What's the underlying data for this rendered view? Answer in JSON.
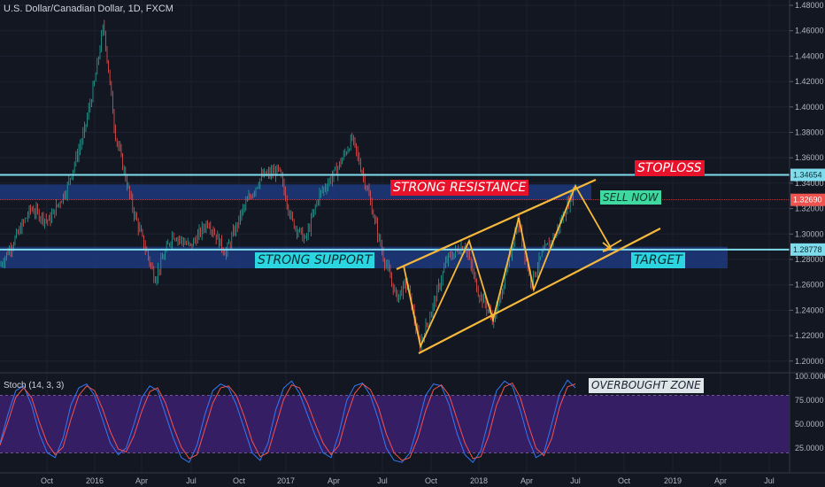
{
  "header": {
    "symbol_title": "U.S. Dollar/Canadian Dollar, 1D, FXCM",
    "stoch_title": "Stoch (14, 3, 3)"
  },
  "annotations": {
    "stoploss": "STOPLOSS",
    "strong_resistance": "STRONG RESISTANCE",
    "sell_now": "SELL NOW",
    "strong_support": "STRONG SUPPORT",
    "target": "TARGET",
    "overbought_zone": "OVERBOUGHT ZONE"
  },
  "price_tags": {
    "upper_line": "1.34654",
    "current": "1.32690",
    "lower_line": "1.28778"
  },
  "colors": {
    "background": "#131722",
    "candle_up": "#26a69a",
    "candle_down": "#ef5350",
    "level_line": "#7fdcec",
    "zone_fill": "#1f3d8a",
    "channel": "#f6b93b",
    "stoch_k": "#3179f5",
    "stoch_d": "#ef5350",
    "stoch_band": "#3b1f6b"
  },
  "chart_data": [
    {
      "type": "line",
      "title": "U.S. Dollar/Canadian Dollar, 1D, FXCM",
      "ylim": [
        1.19,
        1.48
      ],
      "yticks": [
        "1.48000",
        "1.46000",
        "1.44000",
        "1.42000",
        "1.40000",
        "1.38000",
        "1.36000",
        "1.34000",
        "1.32000",
        "1.30000",
        "1.28000",
        "1.26000",
        "1.24000",
        "1.22000",
        "1.20000"
      ],
      "xticks": [
        "Oct",
        "2016",
        "Apr",
        "Jul",
        "Oct",
        "2017",
        "Apr",
        "Jul",
        "Oct",
        "2018",
        "Apr",
        "Jul",
        "Oct",
        "2019",
        "Apr",
        "Jul"
      ],
      "series": [
        {
          "name": "",
          "x": [
            "2015-08",
            "2015-09",
            "2015-10",
            "2015-11",
            "2015-12",
            "2016-01",
            "2016-01-20",
            "2016-02",
            "2016-03",
            "2016-04",
            "2016-05",
            "2016-06",
            "2016-07",
            "2016-08",
            "2016-09",
            "2016-10",
            "2016-11",
            "2016-12",
            "2017-01",
            "2017-02",
            "2017-03",
            "2017-04",
            "2017-05",
            "2017-06",
            "2017-07",
            "2017-08",
            "2017-09",
            "2017-10",
            "2017-11",
            "2017-12",
            "2018-01",
            "2018-02",
            "2018-03",
            "2018-04",
            "2018-05",
            "2018-06",
            "2018-06-28",
            "2018-07"
          ],
          "values": [
            1.275,
            1.32,
            1.31,
            1.335,
            1.38,
            1.42,
            1.465,
            1.38,
            1.31,
            1.27,
            1.3,
            1.29,
            1.31,
            1.29,
            1.32,
            1.335,
            1.35,
            1.335,
            1.31,
            1.32,
            1.335,
            1.36,
            1.375,
            1.33,
            1.26,
            1.25,
            1.215,
            1.26,
            1.285,
            1.28,
            1.235,
            1.27,
            1.31,
            1.26,
            1.3,
            1.32,
            1.338,
            1.32
          ]
        }
      ],
      "levels": [
        1.34654,
        1.3269,
        1.28778
      ],
      "zones": [
        {
          "label": "STRONG RESISTANCE",
          "from": 1.327,
          "to": 1.339
        },
        {
          "label": "STRONG SUPPORT",
          "from": 1.273,
          "to": 1.29
        }
      ]
    },
    {
      "type": "line",
      "title": "Stoch (14, 3, 3)",
      "ylim": [
        0,
        100
      ],
      "yticks": [
        "100.0000",
        "75.0000",
        "50.0000",
        "25.0000"
      ],
      "band": [
        20,
        80
      ],
      "series": [
        {
          "name": "",
          "values": [
            30,
            60,
            85,
            90,
            70,
            40,
            20,
            15,
            35,
            70,
            88,
            92,
            80,
            55,
            30,
            18,
            25,
            50,
            78,
            90,
            85,
            60,
            35,
            15,
            10,
            28,
            60,
            85,
            92,
            88,
            70,
            45,
            20,
            12,
            30,
            65,
            88,
            95,
            82,
            60,
            38,
            20,
            15,
            40,
            75,
            90,
            93,
            80,
            55,
            25,
            12,
            10,
            20,
            48,
            80,
            92,
            90,
            70,
            40,
            18,
            10,
            22,
            55,
            85,
            95,
            90,
            65,
            35,
            15,
            20,
            50,
            82,
            96,
            88
          ]
        },
        {
          "name": "",
          "values": [
            28,
            52,
            78,
            88,
            78,
            52,
            30,
            18,
            26,
            55,
            80,
            90,
            85,
            66,
            42,
            24,
            21,
            38,
            64,
            84,
            88,
            72,
            47,
            26,
            14,
            18,
            45,
            72,
            88,
            90,
            80,
            58,
            32,
            16,
            20,
            48,
            76,
            91,
            88,
            72,
            50,
            30,
            18,
            28,
            58,
            82,
            92,
            86,
            68,
            40,
            20,
            12,
            15,
            35,
            64,
            86,
            91,
            80,
            55,
            30,
            14,
            16,
            38,
            70,
            89,
            93,
            78,
            50,
            25,
            17,
            35,
            68,
            89,
            92
          ]
        }
      ]
    }
  ]
}
